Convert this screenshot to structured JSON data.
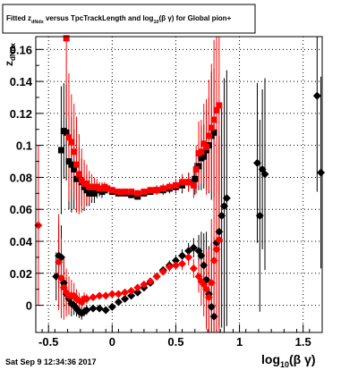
{
  "chart_data": {
    "type": "scatter",
    "title": {
      "pre": "Fitted  z",
      "sub1": "dNdx",
      "mid": " versus TpcTrackLength and log",
      "sub2": "10",
      "post": "(β γ) for Global pion+"
    },
    "xlabel": {
      "main": "log",
      "sub": "10",
      "post": "(β γ)"
    },
    "ylabel": {
      "main": "z",
      "sub": "dNdx"
    },
    "xlim": [
      -0.6,
      1.65
    ],
    "ylim": [
      -0.017,
      0.168
    ],
    "xticks": [
      "-0.5",
      "0",
      "0.5",
      "1",
      "1.5"
    ],
    "yticks": [
      "0",
      "0.02",
      "0.04",
      "0.06",
      "0.08",
      "0.1",
      "0.12",
      "0.14",
      "0.16"
    ],
    "grid": true,
    "timestamp": "Sat Sep  9 12:34:36 2017",
    "colors": {
      "black": "#000000",
      "red": "#ff0000"
    },
    "series": [
      {
        "marker": "square",
        "color": "#000000",
        "points": [
          [
            -0.4,
            0.097,
            0.04
          ],
          [
            -0.38,
            0.109,
            0.03
          ],
          [
            -0.36,
            0.108,
            0.03
          ],
          [
            -0.34,
            0.09,
            0.03
          ],
          [
            -0.32,
            0.088,
            0.03
          ],
          [
            -0.3,
            0.085,
            0.025
          ],
          [
            -0.28,
            0.079,
            0.02
          ],
          [
            -0.26,
            0.079,
            0.02
          ],
          [
            -0.24,
            0.077,
            0.015
          ],
          [
            -0.22,
            0.074,
            0.015
          ],
          [
            -0.2,
            0.072,
            0.01
          ],
          [
            -0.18,
            0.07,
            0.008
          ],
          [
            -0.16,
            0.07,
            0.006
          ],
          [
            -0.14,
            0.07,
            0.006
          ],
          [
            -0.12,
            0.072,
            0.005
          ],
          [
            -0.1,
            0.072,
            0.004
          ],
          [
            -0.08,
            0.071,
            0.004
          ],
          [
            -0.06,
            0.072,
            0.003
          ],
          [
            -0.04,
            0.073,
            0.003
          ],
          [
            0.0,
            0.071,
            0.002
          ],
          [
            0.05,
            0.07,
            0.002
          ],
          [
            0.1,
            0.07,
            0.002
          ],
          [
            0.15,
            0.069,
            0.002
          ],
          [
            0.2,
            0.068,
            0.002
          ],
          [
            0.25,
            0.07,
            0.002
          ],
          [
            0.3,
            0.071,
            0.002
          ],
          [
            0.35,
            0.072,
            0.003
          ],
          [
            0.4,
            0.072,
            0.003
          ],
          [
            0.45,
            0.073,
            0.003
          ],
          [
            0.5,
            0.074,
            0.004
          ],
          [
            0.55,
            0.075,
            0.005
          ],
          [
            0.6,
            0.077,
            0.006
          ],
          [
            0.65,
            0.079,
            0.01
          ],
          [
            0.68,
            0.087,
            0.015
          ],
          [
            0.7,
            0.092,
            0.02
          ],
          [
            0.72,
            0.093,
            0.02
          ],
          [
            0.74,
            0.097,
            0.025
          ],
          [
            0.76,
            0.1,
            0.03
          ],
          [
            0.78,
            0.106,
            0.04
          ],
          [
            0.8,
            0.108,
            0.04
          ]
        ]
      },
      {
        "marker": "diamond",
        "color": "#000000",
        "points": [
          [
            -0.44,
            0.018,
            0.015
          ],
          [
            -0.42,
            0.031,
            0.02
          ],
          [
            -0.4,
            0.03,
            0.02
          ],
          [
            -0.38,
            0.014,
            0.015
          ],
          [
            -0.36,
            0.007,
            0.01
          ],
          [
            -0.34,
            0.004,
            0.01
          ],
          [
            -0.32,
            0.001,
            0.008
          ],
          [
            -0.3,
            0.0,
            0.006
          ],
          [
            -0.28,
            -0.002,
            0.005
          ],
          [
            -0.26,
            -0.004,
            0.004
          ],
          [
            -0.24,
            -0.005,
            0.004
          ],
          [
            -0.22,
            -0.004,
            0.003
          ],
          [
            -0.2,
            -0.003,
            0.003
          ],
          [
            -0.15,
            -0.002,
            0.002
          ],
          [
            -0.1,
            -0.002,
            0.002
          ],
          [
            -0.05,
            -0.003,
            0.002
          ],
          [
            0.0,
            -0.001,
            0.002
          ],
          [
            0.05,
            0.002,
            0.002
          ],
          [
            0.1,
            0.004,
            0.002
          ],
          [
            0.15,
            0.006,
            0.002
          ],
          [
            0.2,
            0.008,
            0.002
          ],
          [
            0.25,
            0.011,
            0.002
          ],
          [
            0.3,
            0.014,
            0.002
          ],
          [
            0.35,
            0.018,
            0.002
          ],
          [
            0.4,
            0.022,
            0.002
          ],
          [
            0.45,
            0.025,
            0.003
          ],
          [
            0.5,
            0.028,
            0.003
          ],
          [
            0.55,
            0.031,
            0.004
          ],
          [
            0.6,
            0.034,
            0.005
          ],
          [
            0.64,
            0.036,
            0.006
          ],
          [
            0.68,
            0.034,
            0.01
          ],
          [
            0.7,
            0.031,
            0.015
          ],
          [
            0.72,
            0.025,
            0.02
          ],
          [
            0.74,
            0.016,
            0.03
          ],
          [
            0.76,
            0.007,
            0.03
          ],
          [
            0.78,
            -0.001,
            0.04
          ],
          [
            0.8,
            -0.007,
            0.05
          ],
          [
            0.82,
            0.039,
            0.06
          ],
          [
            0.84,
            0.046,
            0.06
          ],
          [
            0.86,
            0.056,
            0.07
          ],
          [
            0.88,
            0.062,
            0.08
          ],
          [
            0.9,
            0.067,
            0.08
          ],
          [
            1.14,
            0.089,
            0.05
          ],
          [
            1.16,
            0.056,
            0.06
          ],
          [
            1.18,
            0.085,
            0.05
          ],
          [
            1.2,
            0.082,
            0.06
          ],
          [
            1.61,
            0.131,
            0.06
          ],
          [
            1.64,
            0.083,
            0.06
          ]
        ]
      },
      {
        "marker": "square",
        "color": "#ff0000",
        "points": [
          [
            -0.36,
            0.167,
            0.05
          ],
          [
            -0.34,
            0.105,
            0.04
          ],
          [
            -0.32,
            0.102,
            0.03
          ],
          [
            -0.3,
            0.096,
            0.03
          ],
          [
            -0.28,
            0.088,
            0.03
          ],
          [
            -0.26,
            0.082,
            0.025
          ],
          [
            -0.24,
            0.078,
            0.02
          ],
          [
            -0.22,
            0.076,
            0.015
          ],
          [
            -0.2,
            0.076,
            0.012
          ],
          [
            -0.18,
            0.074,
            0.01
          ],
          [
            -0.16,
            0.074,
            0.008
          ],
          [
            -0.14,
            0.074,
            0.006
          ],
          [
            -0.12,
            0.074,
            0.005
          ],
          [
            -0.1,
            0.073,
            0.004
          ],
          [
            -0.08,
            0.073,
            0.004
          ],
          [
            -0.06,
            0.074,
            0.003
          ],
          [
            -0.04,
            0.073,
            0.003
          ],
          [
            0.0,
            0.072,
            0.002
          ],
          [
            0.05,
            0.071,
            0.002
          ],
          [
            0.1,
            0.071,
            0.002
          ],
          [
            0.15,
            0.071,
            0.002
          ],
          [
            0.2,
            0.07,
            0.002
          ],
          [
            0.25,
            0.071,
            0.002
          ],
          [
            0.3,
            0.072,
            0.002
          ],
          [
            0.35,
            0.072,
            0.003
          ],
          [
            0.4,
            0.073,
            0.003
          ],
          [
            0.45,
            0.074,
            0.003
          ],
          [
            0.5,
            0.075,
            0.004
          ],
          [
            0.55,
            0.077,
            0.005
          ],
          [
            0.6,
            0.077,
            0.006
          ],
          [
            0.64,
            0.075,
            0.008
          ],
          [
            0.66,
            0.085,
            0.015
          ],
          [
            0.68,
            0.095,
            0.02
          ],
          [
            0.7,
            0.096,
            0.02
          ],
          [
            0.72,
            0.101,
            0.025
          ],
          [
            0.74,
            0.099,
            0.03
          ],
          [
            0.76,
            0.106,
            0.035
          ],
          [
            0.78,
            0.111,
            0.04
          ],
          [
            0.8,
            0.116,
            0.05
          ],
          [
            0.82,
            0.122,
            0.05
          ],
          [
            0.84,
            0.125,
            0.06
          ]
        ]
      },
      {
        "marker": "diamond",
        "color": "#ff0000",
        "points": [
          [
            -0.58,
            0.05,
            0.05
          ],
          [
            -0.42,
            0.027,
            0.03
          ],
          [
            -0.4,
            0.017,
            0.025
          ],
          [
            -0.38,
            0.011,
            0.02
          ],
          [
            -0.36,
            0.008,
            0.015
          ],
          [
            -0.34,
            0.006,
            0.012
          ],
          [
            -0.32,
            0.006,
            0.01
          ],
          [
            -0.3,
            0.006,
            0.008
          ],
          [
            -0.28,
            0.004,
            0.006
          ],
          [
            -0.26,
            0.003,
            0.005
          ],
          [
            -0.24,
            0.002,
            0.004
          ],
          [
            -0.22,
            0.004,
            0.004
          ],
          [
            -0.2,
            0.004,
            0.003
          ],
          [
            -0.15,
            0.005,
            0.002
          ],
          [
            -0.1,
            0.006,
            0.002
          ],
          [
            -0.05,
            0.006,
            0.002
          ],
          [
            0.0,
            0.007,
            0.002
          ],
          [
            0.05,
            0.007,
            0.002
          ],
          [
            0.1,
            0.008,
            0.002
          ],
          [
            0.15,
            0.009,
            0.002
          ],
          [
            0.2,
            0.011,
            0.002
          ],
          [
            0.25,
            0.013,
            0.002
          ],
          [
            0.3,
            0.015,
            0.002
          ],
          [
            0.35,
            0.018,
            0.002
          ],
          [
            0.4,
            0.021,
            0.002
          ],
          [
            0.45,
            0.024,
            0.003
          ],
          [
            0.5,
            0.025,
            0.003
          ],
          [
            0.55,
            0.026,
            0.004
          ],
          [
            0.6,
            0.03,
            0.005
          ],
          [
            0.64,
            0.023,
            0.006
          ],
          [
            0.68,
            0.018,
            0.01
          ],
          [
            0.7,
            0.015,
            0.015
          ],
          [
            0.72,
            0.013,
            0.02
          ],
          [
            0.74,
            0.01,
            0.025
          ],
          [
            0.76,
            0.005,
            0.03
          ],
          [
            0.78,
            0.014,
            0.04
          ],
          [
            0.8,
            0.028,
            0.05
          ],
          [
            0.82,
            0.035,
            0.05
          ],
          [
            0.84,
            0.041,
            0.06
          ]
        ]
      }
    ]
  }
}
